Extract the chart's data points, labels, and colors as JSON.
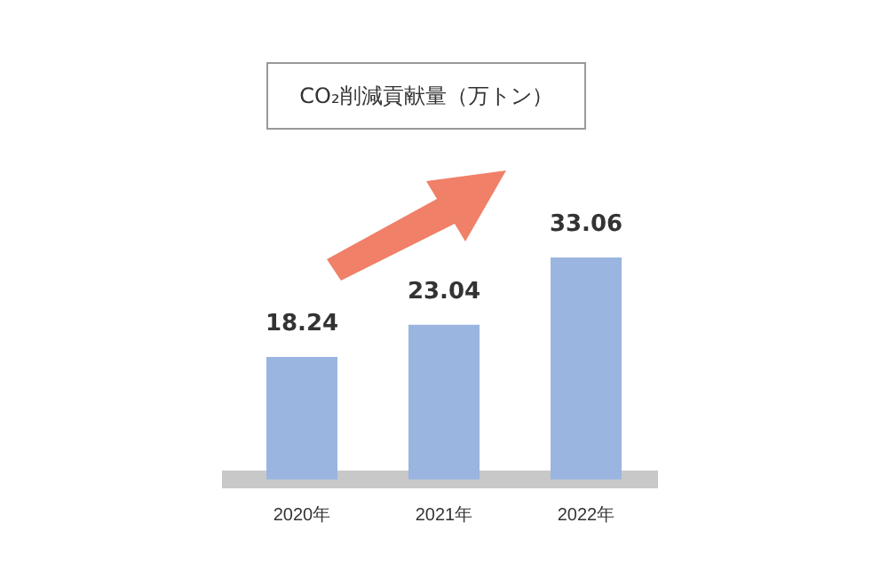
{
  "chart_data": {
    "type": "bar",
    "title": "CO₂削減貢献量（万トン）",
    "categories": [
      "2020年",
      "2021年",
      "2022年"
    ],
    "values": [
      18.24,
      23.04,
      33.06
    ],
    "color": "#9ab5e0",
    "data_labels": true,
    "grid": false,
    "legend": false,
    "tick_labels": "x"
  }
}
